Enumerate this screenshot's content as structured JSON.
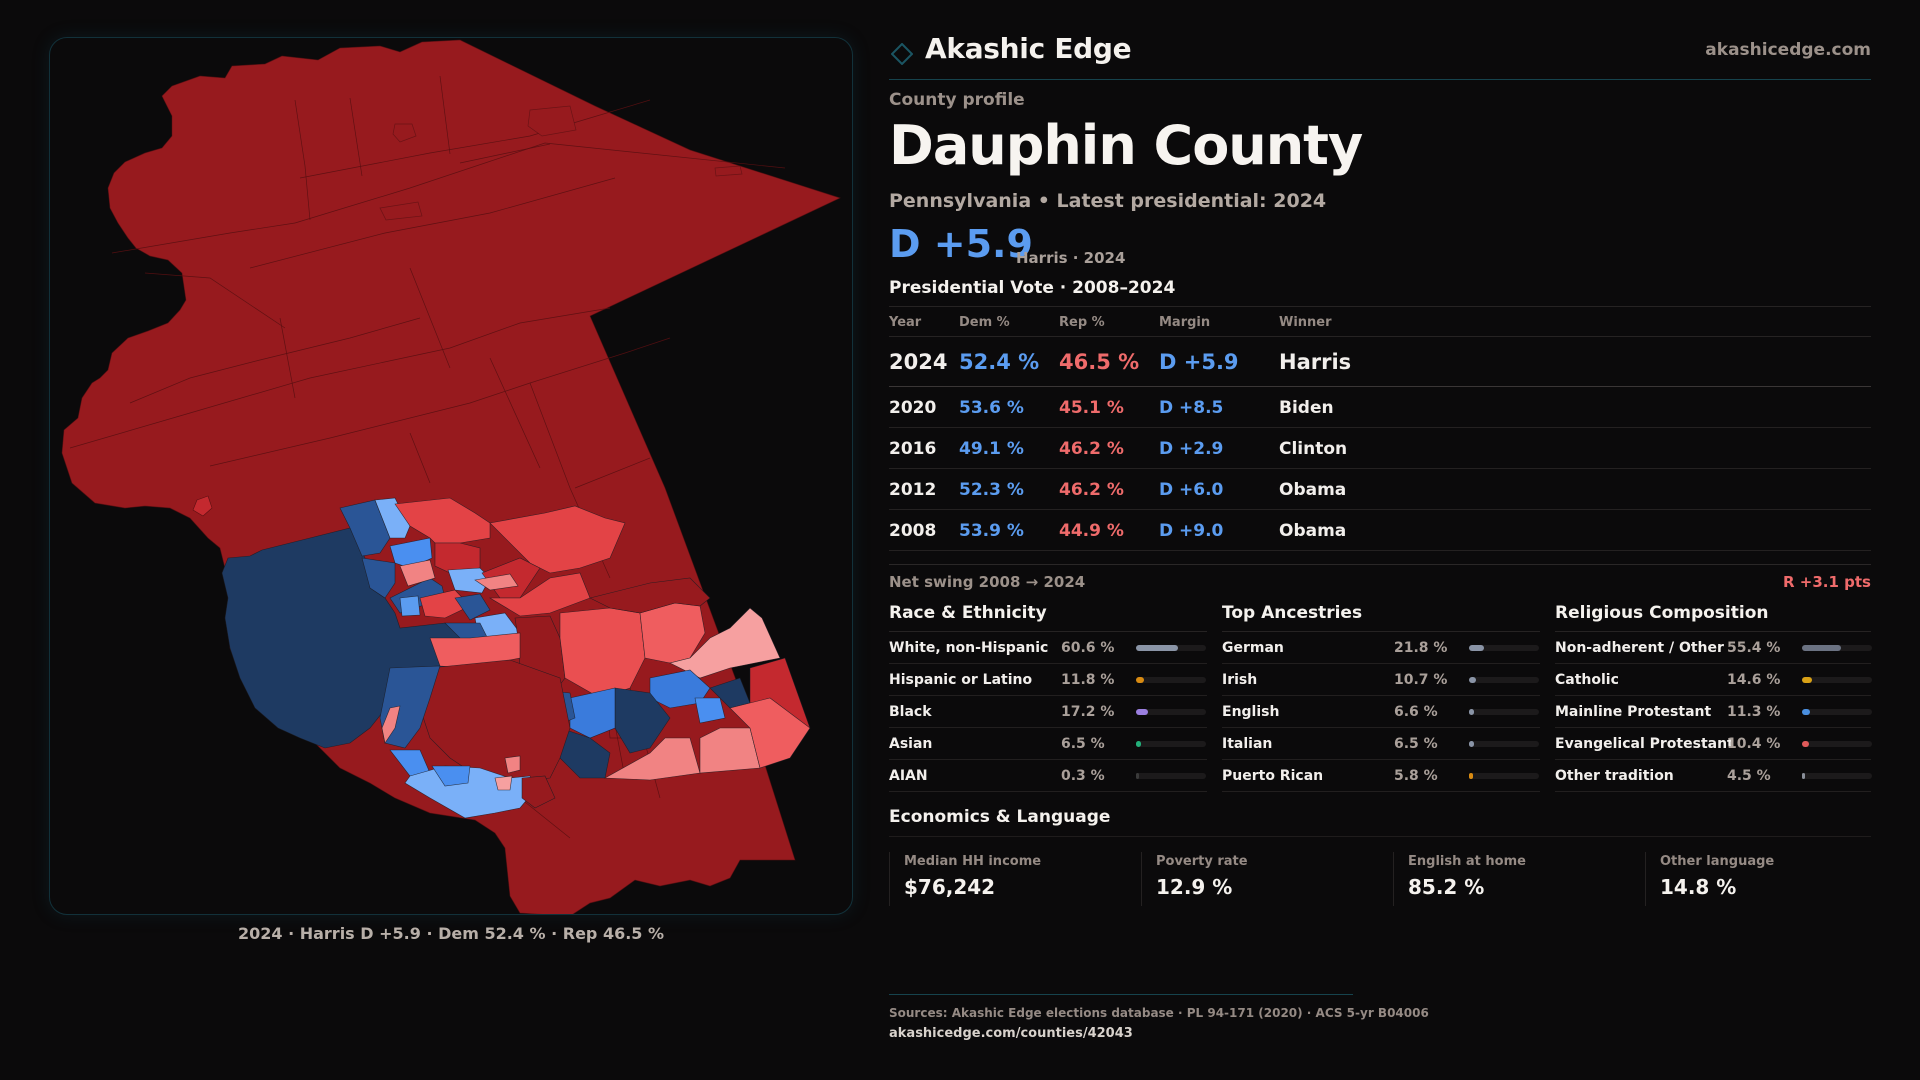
{
  "brand": {
    "name": "Akashic Edge",
    "url": "akashicedge.com",
    "icon": "diamond-outline-icon",
    "accent": "#16434d"
  },
  "profile": {
    "eyebrow": "County profile",
    "title": "Dauphin County",
    "subtitle": "Pennsylvania • Latest presidential: 2024",
    "margin": "D +5.9",
    "margin_note": "Harris · 2024"
  },
  "colors": {
    "dem": "#5b9cf0",
    "rep": "#ef6b6b",
    "background": "#0b0a0b"
  },
  "map": {
    "caption": "2024 · Harris D +5.9 · Dem 52.4 % · Rep 46.5 %",
    "legend_colors": {
      "strong_rep": "#971a1e",
      "lean_rep": "#c4292f",
      "mid_rep": "#e34346",
      "soft_rep": "#f18383",
      "tilt_rep": "#f6a0a0",
      "strong_dem": "#1e3a62",
      "lean_dem": "#2a5596",
      "mid_dem": "#3a7bdc",
      "soft_dem": "#4a8ff0",
      "tilt_dem": "#7ab0f8"
    }
  },
  "presidential": {
    "title": "Presidential Vote · 2008–2024",
    "columns": [
      "Year",
      "Dem %",
      "Rep %",
      "Margin",
      "Winner"
    ],
    "rows": [
      {
        "year": "2024",
        "dem": "52.4 %",
        "rep": "46.5 %",
        "margin": "D +5.9",
        "winner": "Harris"
      },
      {
        "year": "2020",
        "dem": "53.6 %",
        "rep": "45.1 %",
        "margin": "D +8.5",
        "winner": "Biden"
      },
      {
        "year": "2016",
        "dem": "49.1 %",
        "rep": "46.2 %",
        "margin": "D +2.9",
        "winner": "Clinton"
      },
      {
        "year": "2012",
        "dem": "52.3 %",
        "rep": "46.2 %",
        "margin": "D +6.0",
        "winner": "Obama"
      },
      {
        "year": "2008",
        "dem": "53.9 %",
        "rep": "44.9 %",
        "margin": "D +9.0",
        "winner": "Obama"
      }
    ],
    "swing_label": "Net swing 2008 → 2024",
    "swing_value": "R +3.1 pts"
  },
  "demographics": [
    {
      "title": "Race & Ethnicity",
      "items": [
        {
          "label": "White, non-Hispanic",
          "value": "60.6 %",
          "pct": 60.6,
          "color": "#8a94a6"
        },
        {
          "label": "Hispanic or Latino",
          "value": "11.8 %",
          "pct": 11.8,
          "color": "#d98b12"
        },
        {
          "label": "Black",
          "value": "17.2 %",
          "pct": 17.2,
          "color": "#9b7fe0"
        },
        {
          "label": "Asian",
          "value": "6.5 %",
          "pct": 6.5,
          "color": "#23b07a"
        },
        {
          "label": "AIAN",
          "value": "0.3 %",
          "pct": 0.3,
          "color": "#3a3a3a"
        }
      ]
    },
    {
      "title": "Top Ancestries",
      "items": [
        {
          "label": "German",
          "value": "21.8 %",
          "pct": 21.8,
          "color": "#8a94a6"
        },
        {
          "label": "Irish",
          "value": "10.7 %",
          "pct": 10.7,
          "color": "#8a94a6"
        },
        {
          "label": "English",
          "value": "6.6 %",
          "pct": 6.6,
          "color": "#8a94a6"
        },
        {
          "label": "Italian",
          "value": "6.5 %",
          "pct": 6.5,
          "color": "#8a94a6"
        },
        {
          "label": "Puerto Rican",
          "value": "5.8 %",
          "pct": 5.8,
          "color": "#d98b12"
        }
      ]
    },
    {
      "title": "Religious Composition",
      "items": [
        {
          "label": "Non-adherent / Other",
          "value": "55.4 %",
          "pct": 55.4,
          "color": "#6b7282"
        },
        {
          "label": "Catholic",
          "value": "14.6 %",
          "pct": 14.6,
          "color": "#d9a116"
        },
        {
          "label": "Mainline Protestant",
          "value": "11.3 %",
          "pct": 11.3,
          "color": "#4a8fe0"
        },
        {
          "label": "Evangelical Protestant",
          "value": "10.4 %",
          "pct": 10.4,
          "color": "#e05a5a"
        },
        {
          "label": "Other tradition",
          "value": "4.5 %",
          "pct": 4.5,
          "color": "#8a8f99"
        }
      ]
    }
  ],
  "economics": {
    "title": "Economics & Language",
    "cards": [
      {
        "label": "Median HH income",
        "value": "$76,242"
      },
      {
        "label": "Poverty rate",
        "value": "12.9 %"
      },
      {
        "label": "English at home",
        "value": "85.2 %"
      },
      {
        "label": "Other language",
        "value": "14.8 %"
      }
    ]
  },
  "footer": {
    "sources": "Sources: Akashic Edge elections database · PL 94-171 (2020) · ACS 5-yr B04006",
    "url": "akashicedge.com/counties/42043"
  }
}
